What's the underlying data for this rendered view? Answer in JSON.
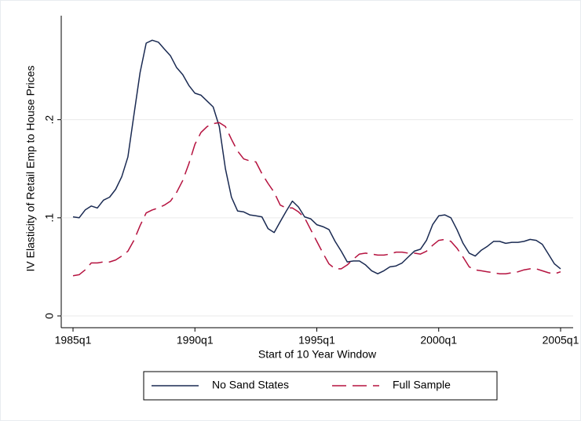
{
  "chart_data": {
    "type": "line",
    "x_label": "Start of 10 Year Window",
    "y_label": "IV Elasticity of Retail Emp to House Prices",
    "x": [
      "1985q1",
      "1985q2",
      "1985q3",
      "1985q4",
      "1986q1",
      "1986q2",
      "1986q3",
      "1986q4",
      "1987q1",
      "1987q2",
      "1987q3",
      "1987q4",
      "1988q1",
      "1988q2",
      "1988q3",
      "1988q4",
      "1989q1",
      "1989q2",
      "1989q3",
      "1989q4",
      "1990q1",
      "1990q2",
      "1990q3",
      "1990q4",
      "1991q1",
      "1991q2",
      "1991q3",
      "1991q4",
      "1992q1",
      "1992q2",
      "1992q3",
      "1992q4",
      "1993q1",
      "1993q2",
      "1993q3",
      "1993q4",
      "1994q1",
      "1994q2",
      "1994q3",
      "1994q4",
      "1995q1",
      "1995q2",
      "1995q3",
      "1995q4",
      "1996q1",
      "1996q2",
      "1996q3",
      "1996q4",
      "1997q1",
      "1997q2",
      "1997q3",
      "1997q4",
      "1998q1",
      "1998q2",
      "1998q3",
      "1998q4",
      "1999q1",
      "1999q2",
      "1999q3",
      "1999q4",
      "2000q1",
      "2000q2",
      "2000q3",
      "2000q4",
      "2001q1",
      "2001q2",
      "2001q3",
      "2001q4",
      "2002q1",
      "2002q2",
      "2002q3",
      "2002q4",
      "2003q1",
      "2003q2",
      "2003q3",
      "2003q4",
      "2004q1",
      "2004q2",
      "2004q3",
      "2004q4",
      "2005q1"
    ],
    "series": [
      {
        "name": "No Sand States",
        "color": "#1a2a52",
        "dash": false,
        "values": [
          0.101,
          0.1,
          0.108,
          0.112,
          0.11,
          0.118,
          0.121,
          0.129,
          0.142,
          0.162,
          0.205,
          0.248,
          0.278,
          0.281,
          0.279,
          0.272,
          0.265,
          0.253,
          0.246,
          0.235,
          0.227,
          0.225,
          0.219,
          0.213,
          0.193,
          0.15,
          0.121,
          0.107,
          0.106,
          0.103,
          0.102,
          0.101,
          0.089,
          0.085,
          0.096,
          0.107,
          0.117,
          0.111,
          0.101,
          0.099,
          0.093,
          0.091,
          0.088,
          0.076,
          0.066,
          0.055,
          0.056,
          0.056,
          0.052,
          0.046,
          0.043,
          0.046,
          0.05,
          0.051,
          0.054,
          0.06,
          0.066,
          0.068,
          0.077,
          0.093,
          0.102,
          0.103,
          0.1,
          0.088,
          0.074,
          0.064,
          0.061,
          0.067,
          0.071,
          0.076,
          0.076,
          0.074,
          0.075,
          0.075,
          0.076,
          0.078,
          0.077,
          0.073,
          0.063,
          0.053,
          0.048
        ]
      },
      {
        "name": "Full Sample",
        "color": "#b5123f",
        "dash": true,
        "values": [
          0.041,
          0.042,
          0.047,
          0.054,
          0.054,
          0.055,
          0.055,
          0.057,
          0.061,
          0.066,
          0.077,
          0.092,
          0.105,
          0.108,
          0.11,
          0.113,
          0.117,
          0.126,
          0.138,
          0.155,
          0.175,
          0.187,
          0.193,
          0.196,
          0.197,
          0.193,
          0.18,
          0.168,
          0.16,
          0.158,
          0.157,
          0.145,
          0.135,
          0.126,
          0.113,
          0.11,
          0.11,
          0.106,
          0.1,
          0.088,
          0.076,
          0.064,
          0.053,
          0.048,
          0.048,
          0.052,
          0.058,
          0.063,
          0.064,
          0.063,
          0.062,
          0.062,
          0.063,
          0.065,
          0.065,
          0.064,
          0.064,
          0.063,
          0.066,
          0.072,
          0.077,
          0.078,
          0.076,
          0.069,
          0.06,
          0.05,
          0.047,
          0.046,
          0.045,
          0.044,
          0.043,
          0.043,
          0.044,
          0.045,
          0.047,
          0.048,
          0.048,
          0.046,
          0.044,
          0.043,
          0.045
        ]
      }
    ],
    "ylim": [
      -0.012,
      0.306
    ],
    "yticks": [
      0,
      {
        "value": 0.1,
        "label": ".1"
      },
      {
        "value": 0.2,
        "label": ".2"
      }
    ],
    "grid": true
  }
}
